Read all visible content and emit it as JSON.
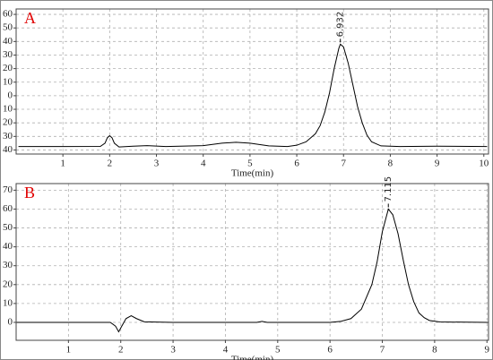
{
  "chart_data": [
    {
      "type": "line",
      "title": "A",
      "x_label": "Time(min)",
      "color": "#000000",
      "grid": true,
      "x": [
        0.05,
        1.0,
        1.8,
        1.9,
        1.95,
        2.0,
        2.05,
        2.1,
        2.2,
        2.5,
        2.8,
        3.2,
        4.0,
        4.4,
        4.7,
        5.0,
        5.4,
        5.8,
        6.0,
        6.2,
        6.4,
        6.5,
        6.6,
        6.7,
        6.8,
        6.9,
        6.932,
        7.0,
        7.1,
        7.2,
        7.3,
        7.4,
        7.5,
        7.6,
        7.8,
        8.2,
        9.0,
        10.07
      ],
      "values": [
        -37.5,
        -37.5,
        -37.4,
        -35,
        -31,
        -29.5,
        -31,
        -35,
        -37.8,
        -37.2,
        -36.8,
        -37.5,
        -36.8,
        -35,
        -34.3,
        -35,
        -37,
        -37.5,
        -36.5,
        -34,
        -28,
        -22,
        -12,
        2,
        20,
        35,
        38,
        36,
        24,
        8,
        -8,
        -20,
        -29,
        -34,
        -37,
        -37.5,
        -37.2,
        -37.5
      ],
      "xlim": [
        0,
        10.1
      ],
      "xticks": [
        1,
        2,
        3,
        4,
        5,
        6,
        7,
        8,
        9,
        10
      ],
      "ylim": [
        -43,
        64
      ],
      "yticks": [
        60,
        50,
        40,
        30,
        20,
        10,
        0,
        {
          "value": -10,
          "label": "10"
        },
        {
          "value": -20,
          "label": "20"
        },
        {
          "value": -30,
          "label": "30"
        },
        {
          "value": -40,
          "label": "40"
        }
      ],
      "annotations": [
        {
          "text": "6.932",
          "x": 6.932,
          "y": 38
        }
      ]
    },
    {
      "type": "line",
      "title": "B",
      "x_label": "Time(min)",
      "color": "#000000",
      "grid": true,
      "x": [
        0.01,
        1.8,
        1.9,
        1.96,
        2.0,
        2.1,
        2.2,
        2.3,
        2.45,
        3.0,
        4.6,
        4.7,
        4.8,
        6.0,
        6.2,
        6.4,
        6.6,
        6.8,
        6.9,
        7.0,
        7.115,
        7.2,
        7.3,
        7.4,
        7.5,
        7.6,
        7.7,
        7.8,
        7.9,
        8.1,
        9.02
      ],
      "values": [
        0,
        0,
        -2,
        -5,
        -3,
        2,
        3.5,
        2,
        0.3,
        0,
        0,
        0.5,
        0,
        0,
        0.5,
        2,
        7,
        20,
        32,
        48,
        60,
        57,
        47,
        33,
        20,
        11,
        5,
        2.5,
        1,
        0.2,
        0
      ],
      "xlim": [
        0,
        9.03
      ],
      "xticks": [
        1,
        2,
        3,
        4,
        5,
        6,
        7,
        8,
        9
      ],
      "ylim": [
        -9.5,
        73.5
      ],
      "yticks": [
        0,
        10,
        20,
        30,
        40,
        50,
        60,
        70
      ],
      "annotations": [
        {
          "text": "7.115",
          "x": 7.115,
          "y": 60
        }
      ]
    }
  ]
}
